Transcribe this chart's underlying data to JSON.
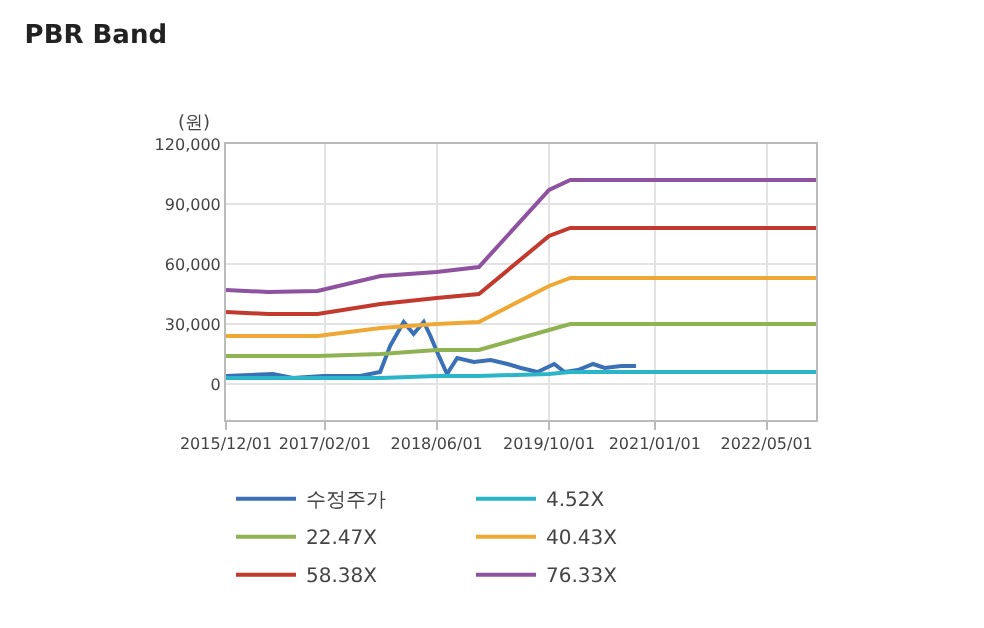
{
  "chart_data": {
    "type": "line",
    "title": "PBR Band",
    "ylabel": "(원)",
    "x": [
      "2015-12-01",
      "2016-06-01",
      "2017-01-01",
      "2017-10-01",
      "2018-06-01",
      "2018-12-01",
      "2019-10-01",
      "2020-01-01",
      "2022-12-01"
    ],
    "series": [
      {
        "name": "수정주가",
        "color": "#3a70b5",
        "x": [
          "2015-12-01",
          "2016-06-21",
          "2016-09-16",
          "2017-01-25",
          "2017-07-04",
          "2017-09-29",
          "2017-11-11",
          "2018-01-09",
          "2018-02-21",
          "2018-04-06",
          "2018-05-05",
          "2018-06-03",
          "2018-07-16",
          "2018-08-29",
          "2018-11-09",
          "2019-01-21",
          "2019-04-04",
          "2019-06-01",
          "2019-08-12",
          "2019-10-24",
          "2019-12-07",
          "2020-02-03",
          "2020-04-09",
          "2020-05-29",
          "2020-08-09",
          "2020-10-12"
        ],
        "values": [
          4000,
          5000,
          3000,
          4000,
          4000,
          6000,
          19000,
          31000,
          25000,
          31000,
          24000,
          16000,
          5000,
          13000,
          11000,
          12000,
          10000,
          8000,
          6000,
          10000,
          6000,
          7000,
          10000,
          8000,
          9000,
          9000
        ]
      },
      {
        "name": "4.52X",
        "color": "#2bb5c8",
        "values": [
          3000,
          3000,
          3000,
          3000,
          4000,
          4000,
          5000,
          6000,
          6000
        ]
      },
      {
        "name": "22.47X",
        "color": "#8fb253",
        "values": [
          14000,
          14000,
          14000,
          15000,
          17000,
          17000,
          27000,
          30000,
          30000
        ]
      },
      {
        "name": "40.43X",
        "color": "#f0a835",
        "values": [
          24000,
          24000,
          24000,
          28000,
          30000,
          31000,
          49000,
          53000,
          53000
        ]
      },
      {
        "name": "58.38X",
        "color": "#c23a2e",
        "values": [
          36000,
          35000,
          35000,
          40000,
          43000,
          45000,
          74000,
          78000,
          78000
        ]
      },
      {
        "name": "76.33X",
        "color": "#8e52a0",
        "values": [
          47000,
          46000,
          46500,
          54000,
          56000,
          58500,
          97000,
          102000,
          102000
        ]
      }
    ],
    "xlim": [
      "2015-12-01",
      "2022-12-01"
    ],
    "xticks": [
      {
        "value": "2015-12-01",
        "label": "2015/12/01"
      },
      {
        "value": "2017-02-01",
        "label": "2017/02/01"
      },
      {
        "value": "2018-06-01",
        "label": "2018/06/01"
      },
      {
        "value": "2019-10-01",
        "label": "2019/10/01"
      },
      {
        "value": "2021-01-01",
        "label": "2021/01/01"
      },
      {
        "value": "2022-05-01",
        "label": "2022/05/01"
      }
    ],
    "ylim": [
      -18000,
      120000
    ],
    "yticks": [
      0,
      {
        "value": 30000,
        "label": "30,000"
      },
      {
        "value": 60000,
        "label": "60,000"
      },
      {
        "value": 90000,
        "label": "90,000"
      },
      {
        "value": 120000,
        "label": "120,000"
      }
    ],
    "grid": true,
    "legend": "bottom",
    "marker": "none",
    "line_style": "solid"
  }
}
